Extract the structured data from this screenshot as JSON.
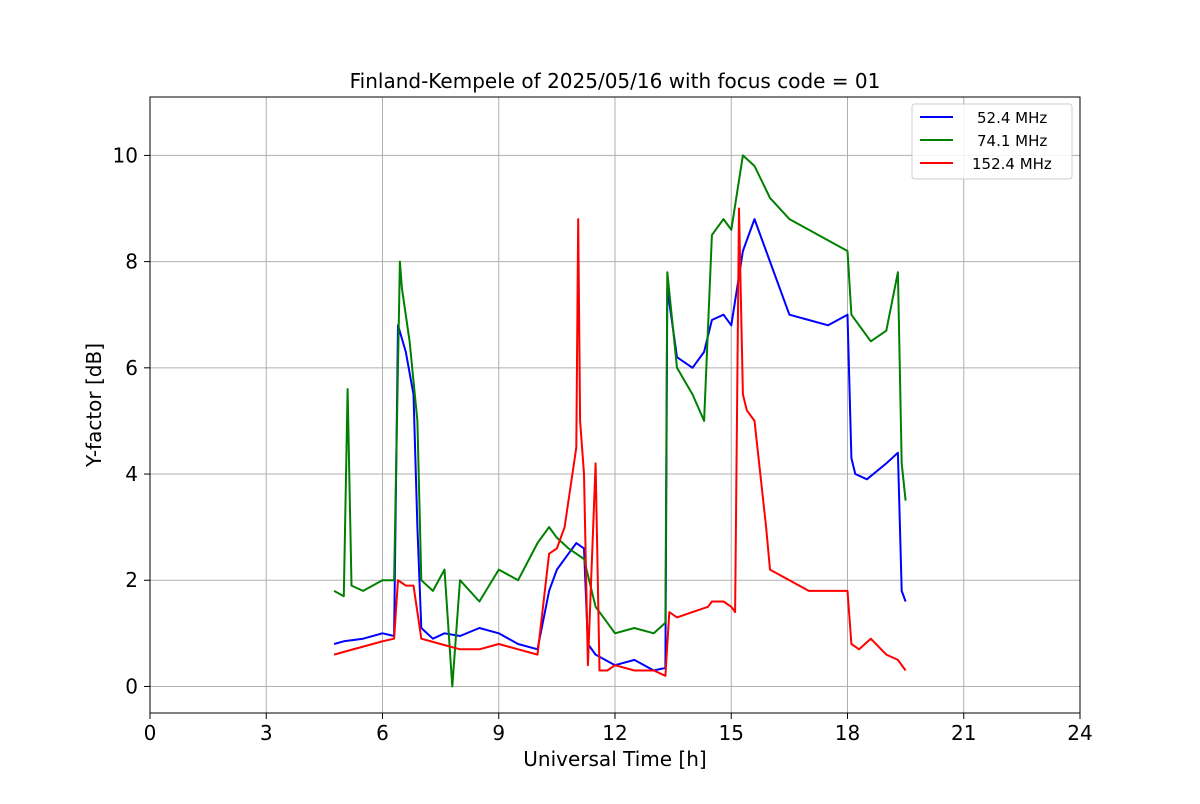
{
  "chart_data": {
    "type": "line",
    "title": "Finland-Kempele of 2025/05/16 with focus code = 01",
    "xlabel": "Universal Time [h]",
    "ylabel": "Y-factor [dB]",
    "xlim": [
      0,
      24
    ],
    "ylim": [
      -0.5,
      11.1
    ],
    "xticks": [
      0,
      3,
      6,
      9,
      12,
      15,
      18,
      21,
      24
    ],
    "yticks": [
      0,
      2,
      4,
      6,
      8,
      10
    ],
    "grid": true,
    "legend_position": "top-right",
    "series": [
      {
        "name": "52.4 MHz",
        "color": "#0000ff",
        "x": [
          4.75,
          5.0,
          5.5,
          6.0,
          6.3,
          6.4,
          6.6,
          6.8,
          6.9,
          7.0,
          7.3,
          7.6,
          8.0,
          8.5,
          9.0,
          9.5,
          10.0,
          10.3,
          10.5,
          10.8,
          11.0,
          11.2,
          11.3,
          11.5,
          12.0,
          12.5,
          13.0,
          13.3,
          13.35,
          13.6,
          14.0,
          14.3,
          14.5,
          14.8,
          15.0,
          15.3,
          15.6,
          16.0,
          16.5,
          17.0,
          17.5,
          18.0,
          18.1,
          18.2,
          18.5,
          19.0,
          19.3,
          19.4,
          19.5
        ],
        "y": [
          0.8,
          0.85,
          0.9,
          1.0,
          0.95,
          6.8,
          6.3,
          5.5,
          3.0,
          1.1,
          0.9,
          1.0,
          0.95,
          1.1,
          1.0,
          0.8,
          0.7,
          1.8,
          2.2,
          2.5,
          2.7,
          2.6,
          0.8,
          0.6,
          0.4,
          0.5,
          0.3,
          0.35,
          7.5,
          6.2,
          6.0,
          6.3,
          6.9,
          7.0,
          6.8,
          8.2,
          8.8,
          8.0,
          7.0,
          6.9,
          6.8,
          7.0,
          4.3,
          4.0,
          3.9,
          4.2,
          4.4,
          1.8,
          1.6
        ]
      },
      {
        "name": "74.1 MHz",
        "color": "#008000",
        "x": [
          4.75,
          5.0,
          5.1,
          5.2,
          5.5,
          6.0,
          6.3,
          6.45,
          6.5,
          6.7,
          6.9,
          7.0,
          7.3,
          7.6,
          7.8,
          8.0,
          8.5,
          9.0,
          9.5,
          10.0,
          10.3,
          10.5,
          10.8,
          11.0,
          11.2,
          11.5,
          11.8,
          12.0,
          12.5,
          13.0,
          13.3,
          13.35,
          13.6,
          14.0,
          14.3,
          14.5,
          14.8,
          15.0,
          15.3,
          15.6,
          16.0,
          16.5,
          17.0,
          17.5,
          18.0,
          18.1,
          18.3,
          18.6,
          19.0,
          19.3,
          19.4,
          19.5
        ],
        "y": [
          1.8,
          1.7,
          5.6,
          1.9,
          1.8,
          2.0,
          2.0,
          8.0,
          7.5,
          6.5,
          5.0,
          2.0,
          1.8,
          2.2,
          0.0,
          2.0,
          1.6,
          2.2,
          2.0,
          2.7,
          3.0,
          2.8,
          2.6,
          2.5,
          2.4,
          1.5,
          1.2,
          1.0,
          1.1,
          1.0,
          1.2,
          7.8,
          6.0,
          5.5,
          5.0,
          8.5,
          8.8,
          8.6,
          10.0,
          9.8,
          9.2,
          8.8,
          8.6,
          8.4,
          8.2,
          7.0,
          6.8,
          6.5,
          6.7,
          7.8,
          4.2,
          3.5
        ]
      },
      {
        "name": "152.4 MHz",
        "color": "#ff0000",
        "x": [
          4.75,
          5.0,
          5.5,
          6.0,
          6.3,
          6.4,
          6.6,
          6.8,
          7.0,
          7.5,
          8.0,
          8.5,
          9.0,
          9.5,
          10.0,
          10.3,
          10.5,
          10.7,
          11.0,
          11.05,
          11.1,
          11.2,
          11.3,
          11.5,
          11.6,
          11.8,
          12.0,
          12.5,
          13.0,
          13.3,
          13.4,
          13.6,
          14.0,
          14.4,
          14.5,
          14.8,
          15.0,
          15.1,
          15.2,
          15.3,
          15.4,
          15.6,
          15.9,
          16.0,
          16.5,
          17.0,
          17.5,
          18.0,
          18.1,
          18.3,
          18.6,
          19.0,
          19.3,
          19.5
        ],
        "y": [
          0.6,
          0.65,
          0.75,
          0.85,
          0.9,
          2.0,
          1.9,
          1.9,
          0.9,
          0.8,
          0.7,
          0.7,
          0.8,
          0.7,
          0.6,
          2.5,
          2.6,
          3.0,
          4.5,
          8.8,
          5.0,
          4.0,
          0.4,
          4.2,
          0.3,
          0.3,
          0.4,
          0.3,
          0.3,
          0.2,
          1.4,
          1.3,
          1.4,
          1.5,
          1.6,
          1.6,
          1.5,
          1.4,
          9.0,
          5.5,
          5.2,
          5.0,
          3.0,
          2.2,
          2.0,
          1.8,
          1.8,
          1.8,
          0.8,
          0.7,
          0.9,
          0.6,
          0.5,
          0.3
        ]
      }
    ]
  }
}
